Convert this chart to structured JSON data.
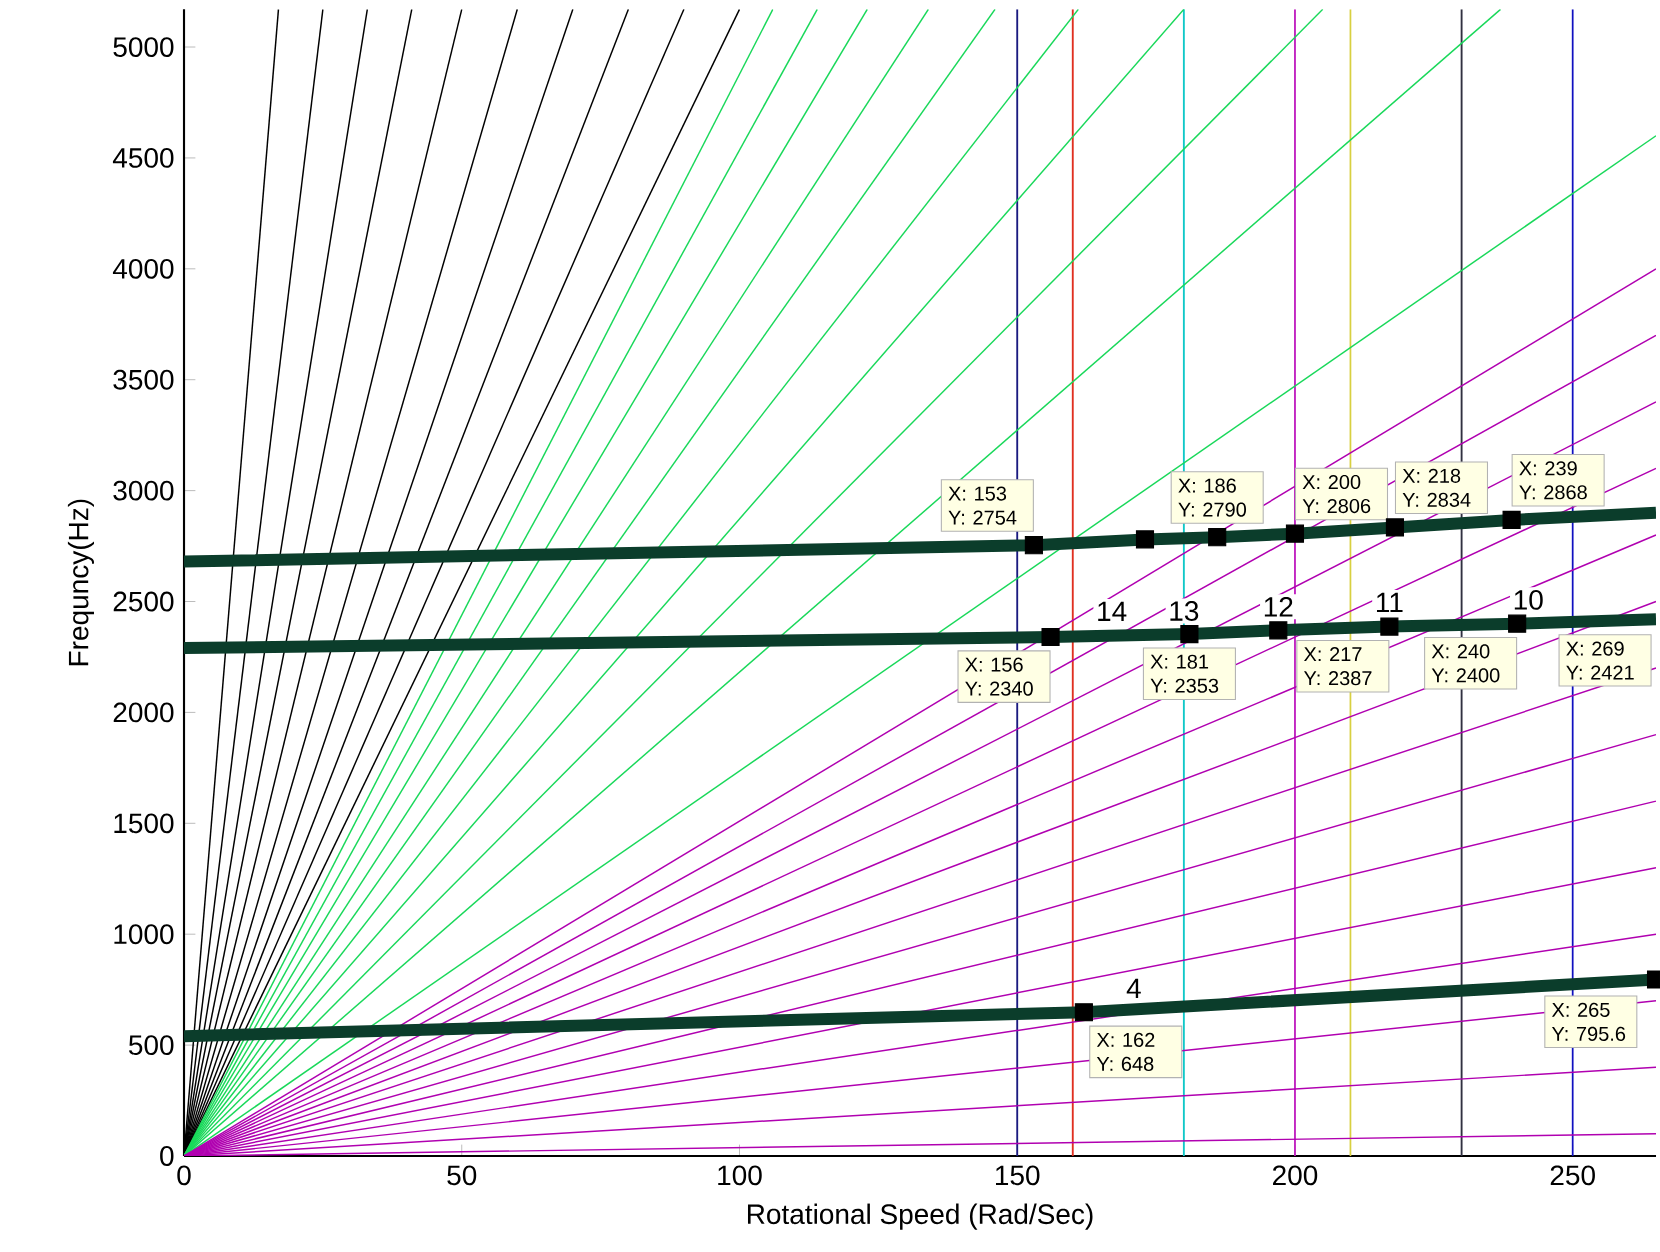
{
  "chart_data": {
    "type": "line",
    "xlabel": "Rotational Speed (Rad/Sec)",
    "ylabel": "Frequncy(Hz)",
    "x": [
      0,
      265
    ],
    "xlim": [
      0,
      265
    ],
    "ylim": [
      0,
      5170
    ],
    "xticks": [
      0,
      50,
      100,
      150,
      200,
      250
    ],
    "yticks": [
      0,
      500,
      1000,
      1500,
      2000,
      2500,
      3000,
      3500,
      4000,
      4500,
      5000
    ],
    "marker": "none",
    "ref_lines": [
      {
        "axis": "x",
        "value": 150,
        "color": "#1a1a80"
      },
      {
        "axis": "x",
        "value": 160,
        "color": "#e03020"
      },
      {
        "axis": "x",
        "value": 180,
        "color": "#10c8c8"
      },
      {
        "axis": "x",
        "value": 200,
        "color": "#c020c0"
      },
      {
        "axis": "x",
        "value": 210,
        "color": "#d8d040"
      },
      {
        "axis": "x",
        "value": 230,
        "color": "#303040"
      },
      {
        "axis": "x",
        "value": 250,
        "color": "#1010c0"
      }
    ],
    "series": [
      {
        "color": "#000000",
        "x": [
          0,
          17
        ],
        "values": [
          0,
          5170
        ]
      },
      {
        "color": "#000000",
        "x": [
          0,
          25
        ],
        "values": [
          0,
          5170
        ]
      },
      {
        "color": "#000000",
        "x": [
          0,
          33
        ],
        "values": [
          0,
          5170
        ]
      },
      {
        "color": "#000000",
        "x": [
          0,
          41
        ],
        "values": [
          0,
          5170
        ]
      },
      {
        "color": "#000000",
        "x": [
          0,
          50
        ],
        "values": [
          0,
          5170
        ]
      },
      {
        "color": "#000000",
        "x": [
          0,
          60
        ],
        "values": [
          0,
          5170
        ]
      },
      {
        "color": "#000000",
        "x": [
          0,
          70
        ],
        "values": [
          0,
          5170
        ]
      },
      {
        "color": "#000000",
        "x": [
          0,
          80
        ],
        "values": [
          0,
          5170
        ]
      },
      {
        "color": "#000000",
        "x": [
          0,
          90
        ],
        "values": [
          0,
          5170
        ]
      },
      {
        "color": "#000000",
        "x": [
          0,
          100
        ],
        "values": [
          0,
          5170
        ]
      },
      {
        "color": "#19d85a",
        "x": [
          0,
          106
        ],
        "values": [
          0,
          5170
        ]
      },
      {
        "color": "#19d85a",
        "x": [
          0,
          114
        ],
        "values": [
          0,
          5170
        ]
      },
      {
        "color": "#19d85a",
        "x": [
          0,
          123
        ],
        "values": [
          0,
          5170
        ]
      },
      {
        "color": "#19d85a",
        "x": [
          0,
          134
        ],
        "values": [
          0,
          5170
        ]
      },
      {
        "color": "#19d85a",
        "x": [
          0,
          146
        ],
        "values": [
          0,
          5170
        ]
      },
      {
        "color": "#19d85a",
        "x": [
          0,
          161
        ],
        "values": [
          0,
          5170
        ]
      },
      {
        "color": "#19d85a",
        "x": [
          0,
          180
        ],
        "values": [
          0,
          5170
        ]
      },
      {
        "color": "#19d85a",
        "x": [
          0,
          205
        ],
        "values": [
          0,
          5170
        ]
      },
      {
        "color": "#19d85a",
        "x": [
          0,
          237
        ],
        "values": [
          0,
          5170
        ]
      },
      {
        "color": "#19d85a",
        "values": [
          0,
          4600
        ]
      },
      {
        "color": "#b000b0",
        "values": [
          0,
          4000
        ]
      },
      {
        "color": "#b000b0",
        "values": [
          0,
          3700
        ]
      },
      {
        "color": "#b000b0",
        "values": [
          0,
          3400
        ]
      },
      {
        "color": "#b000b0",
        "values": [
          0,
          3100
        ]
      },
      {
        "color": "#b000b0",
        "values": [
          0,
          2800
        ]
      },
      {
        "color": "#b000b0",
        "values": [
          0,
          2500
        ]
      },
      {
        "color": "#b000b0",
        "values": [
          0,
          2200
        ]
      },
      {
        "color": "#b000b0",
        "values": [
          0,
          1900
        ]
      },
      {
        "color": "#b000b0",
        "values": [
          0,
          1600
        ]
      },
      {
        "color": "#b000b0",
        "values": [
          0,
          1300
        ]
      },
      {
        "color": "#b000b0",
        "values": [
          0,
          1000
        ]
      },
      {
        "color": "#b000b0",
        "values": [
          0,
          700
        ]
      },
      {
        "color": "#b000b0",
        "values": [
          0,
          400
        ]
      },
      {
        "color": "#b000b0",
        "values": [
          0,
          100
        ]
      },
      {
        "color": "#0b3d2b",
        "x": [
          0,
          153,
          173,
          186,
          200,
          218,
          239,
          265
        ],
        "values": [
          2680,
          2754,
          2780,
          2790,
          2806,
          2834,
          2868,
          2900
        ]
      },
      {
        "color": "#0b3d2b",
        "x": [
          0,
          156,
          181,
          197,
          217,
          240,
          265
        ],
        "values": [
          2290,
          2340,
          2353,
          2370,
          2387,
          2400,
          2420
        ]
      },
      {
        "color": "#0b3d2b",
        "x": [
          0,
          162,
          265
        ],
        "values": [
          540,
          648,
          795.6
        ]
      },
      {
        "type": "scatter",
        "marker": "square",
        "color": "#000000",
        "x": [
          153,
          173,
          186,
          200,
          218,
          239,
          156,
          181,
          197,
          217,
          240,
          162,
          265
        ],
        "values": [
          2754,
          2780,
          2790,
          2806,
          2834,
          2868,
          2340,
          2353,
          2370,
          2387,
          2400,
          648,
          795.6
        ]
      }
    ],
    "annotations": [
      {
        "text": "X: 153 Y: 2754",
        "x": 153,
        "y": 2754
      },
      {
        "text": "X: 186 Y: 2790",
        "x": 186,
        "y": 2790
      },
      {
        "text": "X: 200 Y: 2806",
        "x": 200,
        "y": 2806
      },
      {
        "text": "X: 218 Y: 2834",
        "x": 218,
        "y": 2834
      },
      {
        "text": "X: 239 Y: 2868",
        "x": 239,
        "y": 2868
      },
      {
        "text": "X: 156 Y: 2340",
        "x": 156,
        "y": 2340
      },
      {
        "text": "X: 181 Y: 2353",
        "x": 181,
        "y": 2353
      },
      {
        "text": "X: 217 Y: 2387",
        "x": 217,
        "y": 2387
      },
      {
        "text": "X: 240 Y: 2400",
        "x": 240,
        "y": 2400
      },
      {
        "text": "X: 162 Y: 648",
        "x": 162,
        "y": 648
      },
      {
        "text": "X: 265 Y: 795.6",
        "x": 265,
        "y": 795.6
      },
      "X: 269 Y: 2421",
      {
        "text": "14",
        "x": 167,
        "y": 2350
      },
      {
        "text": "13",
        "x": 180,
        "y": 2350
      },
      {
        "text": "12",
        "x": 197,
        "y": 2370
      },
      {
        "text": "11",
        "x": 217,
        "y": 2390
      },
      {
        "text": "10",
        "x": 242,
        "y": 2400
      },
      {
        "text": "4",
        "x": 171,
        "y": 650
      }
    ]
  }
}
